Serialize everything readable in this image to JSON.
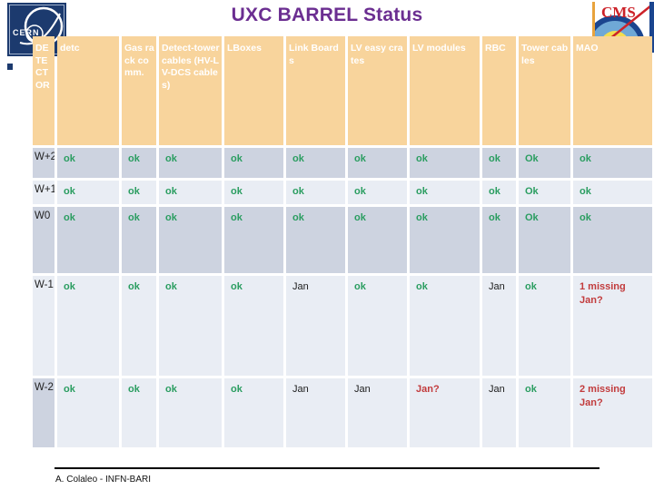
{
  "slide": {
    "title": "UXC BARREL Status",
    "footer": "A. Colaleo - INFN-BARI"
  },
  "logos": {
    "left_text": "CERN",
    "right_text": "CMS"
  },
  "colors": {
    "title_purple": "#6B2E91",
    "header_bg": "#F8D49C",
    "row_dark": "#CDD3E0",
    "row_light": "#E9EDF4",
    "ok_green": "#2A9D60",
    "alert_red": "#C23B3C",
    "plain_text": "#1C1C1C"
  },
  "table": {
    "columns": [
      {
        "label": "DETECTOR"
      },
      {
        "label": "detc"
      },
      {
        "label": "Gas rack comm."
      },
      {
        "label": "Detect-tower cables (HV-LV-DCS cables)"
      },
      {
        "label": "LBoxes"
      },
      {
        "label": "Link Boards"
      },
      {
        "label": "LV easy crates"
      },
      {
        "label": "LV modules"
      },
      {
        "label": "RBC"
      },
      {
        "label": "Tower cables"
      },
      {
        "label": "MAO"
      }
    ],
    "rows": [
      {
        "label": "W+2",
        "shade": "dark",
        "label_shade": "dark",
        "cells": [
          {
            "text": "ok",
            "status": "ok"
          },
          {
            "text": "ok",
            "status": "ok"
          },
          {
            "text": "ok",
            "status": "ok"
          },
          {
            "text": "ok",
            "status": "ok"
          },
          {
            "text": "ok",
            "status": "ok"
          },
          {
            "text": "ok",
            "status": "ok"
          },
          {
            "text": "ok",
            "status": "ok"
          },
          {
            "text": "ok",
            "status": "ok"
          },
          {
            "text": "Ok",
            "status": "ok"
          },
          {
            "text": "ok",
            "status": "ok"
          }
        ]
      },
      {
        "label": "W+1",
        "shade": "light",
        "label_shade": "light",
        "cells": [
          {
            "text": "ok",
            "status": "ok"
          },
          {
            "text": "ok",
            "status": "ok"
          },
          {
            "text": "ok",
            "status": "ok"
          },
          {
            "text": "ok",
            "status": "ok"
          },
          {
            "text": "ok",
            "status": "ok"
          },
          {
            "text": "ok",
            "status": "ok"
          },
          {
            "text": "ok",
            "status": "ok"
          },
          {
            "text": "ok",
            "status": "ok"
          },
          {
            "text": "Ok",
            "status": "ok"
          },
          {
            "text": "ok",
            "status": "ok"
          }
        ]
      },
      {
        "label": "W0",
        "shade": "dark",
        "label_shade": "dark",
        "cells": [
          {
            "text": "ok",
            "status": "ok"
          },
          {
            "text": "ok",
            "status": "ok"
          },
          {
            "text": "ok",
            "status": "ok"
          },
          {
            "text": "ok",
            "status": "ok"
          },
          {
            "text": "ok",
            "status": "ok"
          },
          {
            "text": "ok",
            "status": "ok"
          },
          {
            "text": "ok",
            "status": "ok"
          },
          {
            "text": "ok",
            "status": "ok"
          },
          {
            "text": "Ok",
            "status": "ok"
          },
          {
            "text": "ok",
            "status": "ok"
          }
        ]
      },
      {
        "label": "W-1",
        "shade": "light",
        "label_shade": "light",
        "cells": [
          {
            "text": "ok",
            "status": "ok"
          },
          {
            "text": "ok",
            "status": "ok"
          },
          {
            "text": "ok",
            "status": "ok"
          },
          {
            "text": "ok",
            "status": "ok"
          },
          {
            "text": "Jan",
            "status": "info"
          },
          {
            "text": "ok",
            "status": "ok"
          },
          {
            "text": "ok",
            "status": "ok"
          },
          {
            "text": "Jan",
            "status": "info"
          },
          {
            "text": "ok",
            "status": "ok"
          },
          {
            "text": "1 missing Jan?",
            "status": "alert"
          }
        ]
      },
      {
        "label": "W-2",
        "shade": "light",
        "label_shade": "dark",
        "cells": [
          {
            "text": "ok",
            "status": "ok"
          },
          {
            "text": "ok",
            "status": "ok"
          },
          {
            "text": "ok",
            "status": "ok"
          },
          {
            "text": "ok",
            "status": "ok"
          },
          {
            "text": "Jan",
            "status": "info"
          },
          {
            "text": "Jan",
            "status": "info"
          },
          {
            "text": "Jan?",
            "status": "alert"
          },
          {
            "text": "Jan",
            "status": "info"
          },
          {
            "text": "ok",
            "status": "ok"
          },
          {
            "text": "2 missing Jan?",
            "status": "alert"
          }
        ]
      }
    ]
  }
}
